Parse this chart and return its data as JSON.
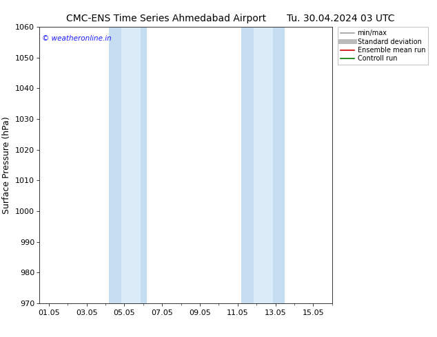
{
  "title_left": "CMC-ENS Time Series Ahmedabad Airport",
  "title_right": "Tu. 30.04.2024 03 UTC",
  "ylabel": "Surface Pressure (hPa)",
  "ylim": [
    970,
    1060
  ],
  "yticks": [
    970,
    980,
    990,
    1000,
    1010,
    1020,
    1030,
    1040,
    1050,
    1060
  ],
  "x_tick_labels": [
    "01.05",
    "03.05",
    "05.05",
    "07.05",
    "09.05",
    "11.05",
    "13.05",
    "15.05"
  ],
  "x_tick_positions": [
    0,
    2,
    4,
    6,
    8,
    10,
    12,
    14
  ],
  "xlim": [
    -0.5,
    15.0
  ],
  "shaded_bands": [
    {
      "x_start": 3.2,
      "x_end": 3.9,
      "color": "#daeaf7"
    },
    {
      "x_start": 3.9,
      "x_end": 5.2,
      "color": "#daeaf7"
    },
    {
      "x_start": 10.2,
      "x_end": 10.9,
      "color": "#daeaf7"
    },
    {
      "x_start": 10.9,
      "x_end": 12.5,
      "color": "#daeaf7"
    }
  ],
  "shaded_bands2": [
    {
      "x_start": 3.2,
      "x_end": 5.2,
      "color": "#daeaf7"
    },
    {
      "x_start": 10.2,
      "x_end": 12.5,
      "color": "#daeaf7"
    }
  ],
  "narrow_bands": [
    {
      "x_start": 3.2,
      "x_end": 3.85,
      "color": "#c5ddf0"
    },
    {
      "x_start": 4.85,
      "x_end": 5.2,
      "color": "#c5ddf0"
    },
    {
      "x_start": 10.2,
      "x_end": 10.85,
      "color": "#c5ddf0"
    },
    {
      "x_start": 11.85,
      "x_end": 12.5,
      "color": "#c5ddf0"
    }
  ],
  "watermark_text": "© weatheronline.in",
  "watermark_color": "#1a1aff",
  "legend_items": [
    {
      "label": "min/max",
      "color": "#999999",
      "lw": 1.2,
      "ls": "-"
    },
    {
      "label": "Standard deviation",
      "color": "#bbbbbb",
      "lw": 5,
      "ls": "-"
    },
    {
      "label": "Ensemble mean run",
      "color": "#cc0000",
      "lw": 1.2,
      "ls": "-"
    },
    {
      "label": "Controll run",
      "color": "#007700",
      "lw": 1.2,
      "ls": "-"
    }
  ],
  "bg_color": "#ffffff",
  "title_fontsize": 10,
  "tick_fontsize": 8,
  "ylabel_fontsize": 9
}
